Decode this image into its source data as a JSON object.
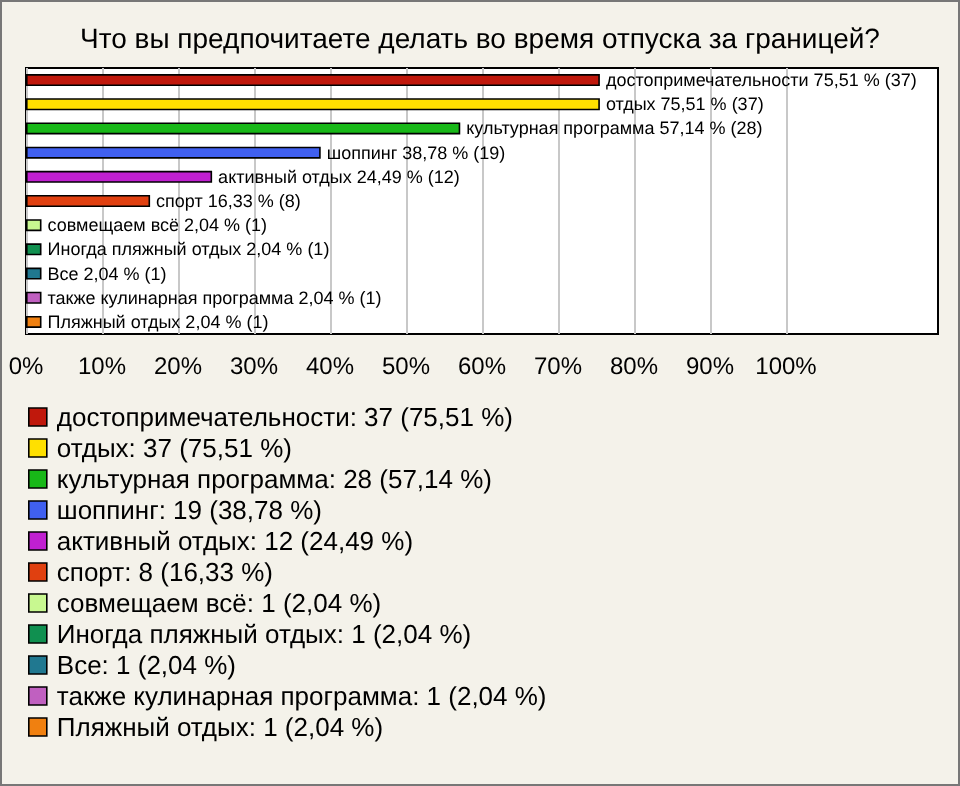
{
  "chart_data": {
    "type": "bar",
    "title": "Что вы предпочитаете делать во время отпуска за границей?",
    "orientation": "horizontal",
    "categories": [
      null,
      null,
      null,
      null,
      null,
      null,
      null,
      null,
      null,
      null,
      null
    ],
    "xlim": [
      0,
      120
    ],
    "xticks": [
      {
        "value": 0,
        "label": "0%"
      },
      {
        "value": 10,
        "label": "10%"
      },
      {
        "value": 20,
        "label": "20%"
      },
      {
        "value": 30,
        "label": "30%"
      },
      {
        "value": 40,
        "label": "40%"
      },
      {
        "value": 50,
        "label": "50%"
      },
      {
        "value": 60,
        "label": "60%"
      },
      {
        "value": 70,
        "label": "70%"
      },
      {
        "value": 80,
        "label": "80%"
      },
      {
        "value": 90,
        "label": "90%"
      },
      {
        "value": 100,
        "label": "100%"
      }
    ],
    "grid": "x",
    "legend": "bottom",
    "tick_labels": "x",
    "series": [
      {
        "name": "достопримечательности: 37 (75,51 %)",
        "color": "#c0180c",
        "values": [
          75.51,
          null,
          null,
          null,
          null,
          null,
          null,
          null,
          null,
          null,
          null
        ],
        "value_labels": [
          "достопримечательности 75,51 % (37)",
          null,
          null,
          null,
          null,
          null,
          null,
          null,
          null,
          null,
          null
        ]
      },
      {
        "name": "отдых: 37 (75,51 %)",
        "color": "#ffe000",
        "values": [
          null,
          75.51,
          null,
          null,
          null,
          null,
          null,
          null,
          null,
          null,
          null
        ],
        "value_labels": [
          null,
          "отдых 75,51 % (37)",
          null,
          null,
          null,
          null,
          null,
          null,
          null,
          null,
          null
        ]
      },
      {
        "name": "культурная программа: 28 (57,14 %)",
        "color": "#18b818",
        "values": [
          null,
          null,
          57.14,
          null,
          null,
          null,
          null,
          null,
          null,
          null,
          null
        ],
        "value_labels": [
          null,
          null,
          "культурная программа 57,14 % (28)",
          null,
          null,
          null,
          null,
          null,
          null,
          null,
          null
        ]
      },
      {
        "name": "шоппинг: 19 (38,78 %)",
        "color": "#4060f0",
        "values": [
          null,
          null,
          null,
          38.78,
          null,
          null,
          null,
          null,
          null,
          null,
          null
        ],
        "value_labels": [
          null,
          null,
          null,
          "шоппинг 38,78 % (19)",
          null,
          null,
          null,
          null,
          null,
          null,
          null
        ]
      },
      {
        "name": "активный отдых: 12 (24,49 %)",
        "color": "#c020d0",
        "values": [
          null,
          null,
          null,
          null,
          24.49,
          null,
          null,
          null,
          null,
          null,
          null
        ],
        "value_labels": [
          null,
          null,
          null,
          null,
          "активный отдых 24,49 % (12)",
          null,
          null,
          null,
          null,
          null,
          null
        ]
      },
      {
        "name": "спорт: 8 (16,33 %)",
        "color": "#e04010",
        "values": [
          null,
          null,
          null,
          null,
          null,
          16.33,
          null,
          null,
          null,
          null,
          null
        ],
        "value_labels": [
          null,
          null,
          null,
          null,
          null,
          "спорт 16,33 % (8)",
          null,
          null,
          null,
          null,
          null
        ]
      },
      {
        "name": "совмещаем всё: 1 (2,04 %)",
        "color": "#c8f890",
        "values": [
          null,
          null,
          null,
          null,
          null,
          null,
          2.04,
          null,
          null,
          null,
          null
        ],
        "value_labels": [
          null,
          null,
          null,
          null,
          null,
          null,
          "совмещаем всё 2,04 % (1)",
          null,
          null,
          null,
          null
        ]
      },
      {
        "name": "Иногда пляжный отдых: 1 (2,04 %)",
        "color": "#109050",
        "values": [
          null,
          null,
          null,
          null,
          null,
          null,
          null,
          2.04,
          null,
          null,
          null
        ],
        "value_labels": [
          null,
          null,
          null,
          null,
          null,
          null,
          null,
          "Иногда пляжный отдых 2,04 % (1)",
          null,
          null,
          null
        ]
      },
      {
        "name": "Все: 1 (2,04 %)",
        "color": "#207890",
        "values": [
          null,
          null,
          null,
          null,
          null,
          null,
          null,
          null,
          2.04,
          null,
          null
        ],
        "value_labels": [
          null,
          null,
          null,
          null,
          null,
          null,
          null,
          null,
          "Все 2,04 % (1)",
          null,
          null
        ]
      },
      {
        "name": "также кулинарная программа: 1 (2,04 %)",
        "color": "#c060c0",
        "values": [
          null,
          null,
          null,
          null,
          null,
          null,
          null,
          null,
          null,
          2.04,
          null
        ],
        "value_labels": [
          null,
          null,
          null,
          null,
          null,
          null,
          null,
          null,
          null,
          "также кулинарная программа 2,04 % (1)",
          null
        ]
      },
      {
        "name": "Пляжный отдых: 1 (2,04 %)",
        "color": "#f08010",
        "values": [
          null,
          null,
          null,
          null,
          null,
          null,
          null,
          null,
          null,
          null,
          2.04
        ],
        "value_labels": [
          null,
          null,
          null,
          null,
          null,
          null,
          null,
          null,
          null,
          null,
          "Пляжный отдых 2,04 % (1)"
        ]
      }
    ]
  }
}
